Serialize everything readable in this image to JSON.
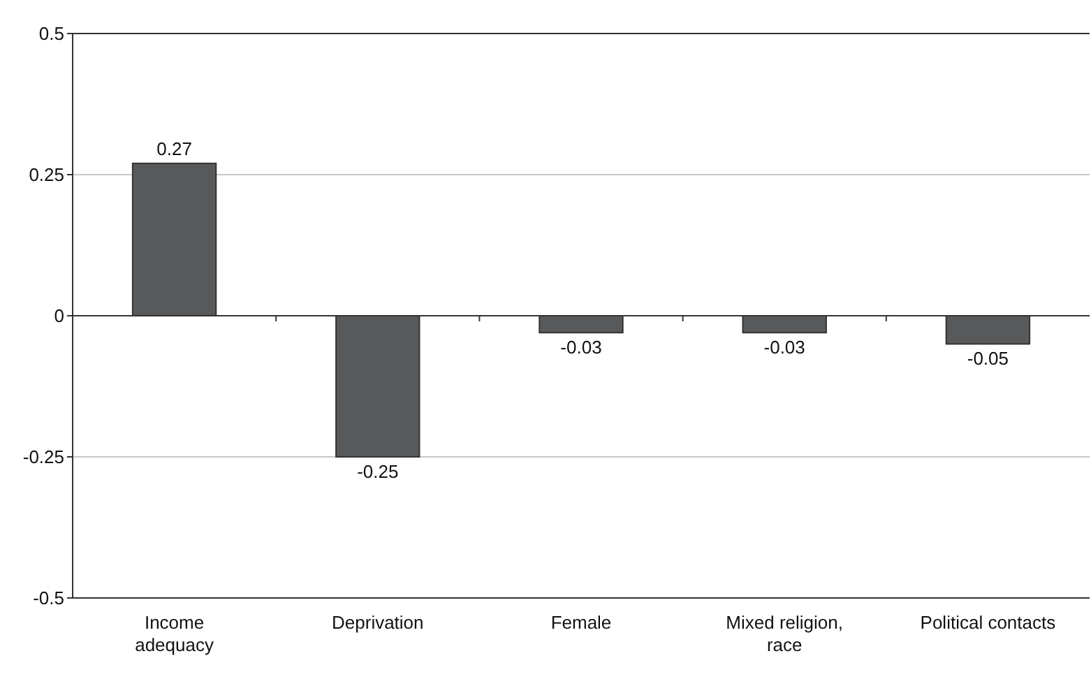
{
  "chart_data": {
    "type": "bar",
    "categories": [
      "Income adequacy",
      "Deprivation",
      "Female",
      "Mixed religion, race",
      "Political contacts"
    ],
    "values": [
      0.27,
      -0.25,
      -0.03,
      -0.03,
      -0.05
    ],
    "color": "#58595b",
    "ylim": [
      -0.5,
      0.5
    ],
    "yticks": [
      {
        "value": -0.5,
        "label": "-0.5"
      },
      {
        "value": -0.25,
        "label": "-0.25"
      },
      0,
      0.25,
      0.5
    ],
    "grid": "y",
    "data_labels": true
  }
}
